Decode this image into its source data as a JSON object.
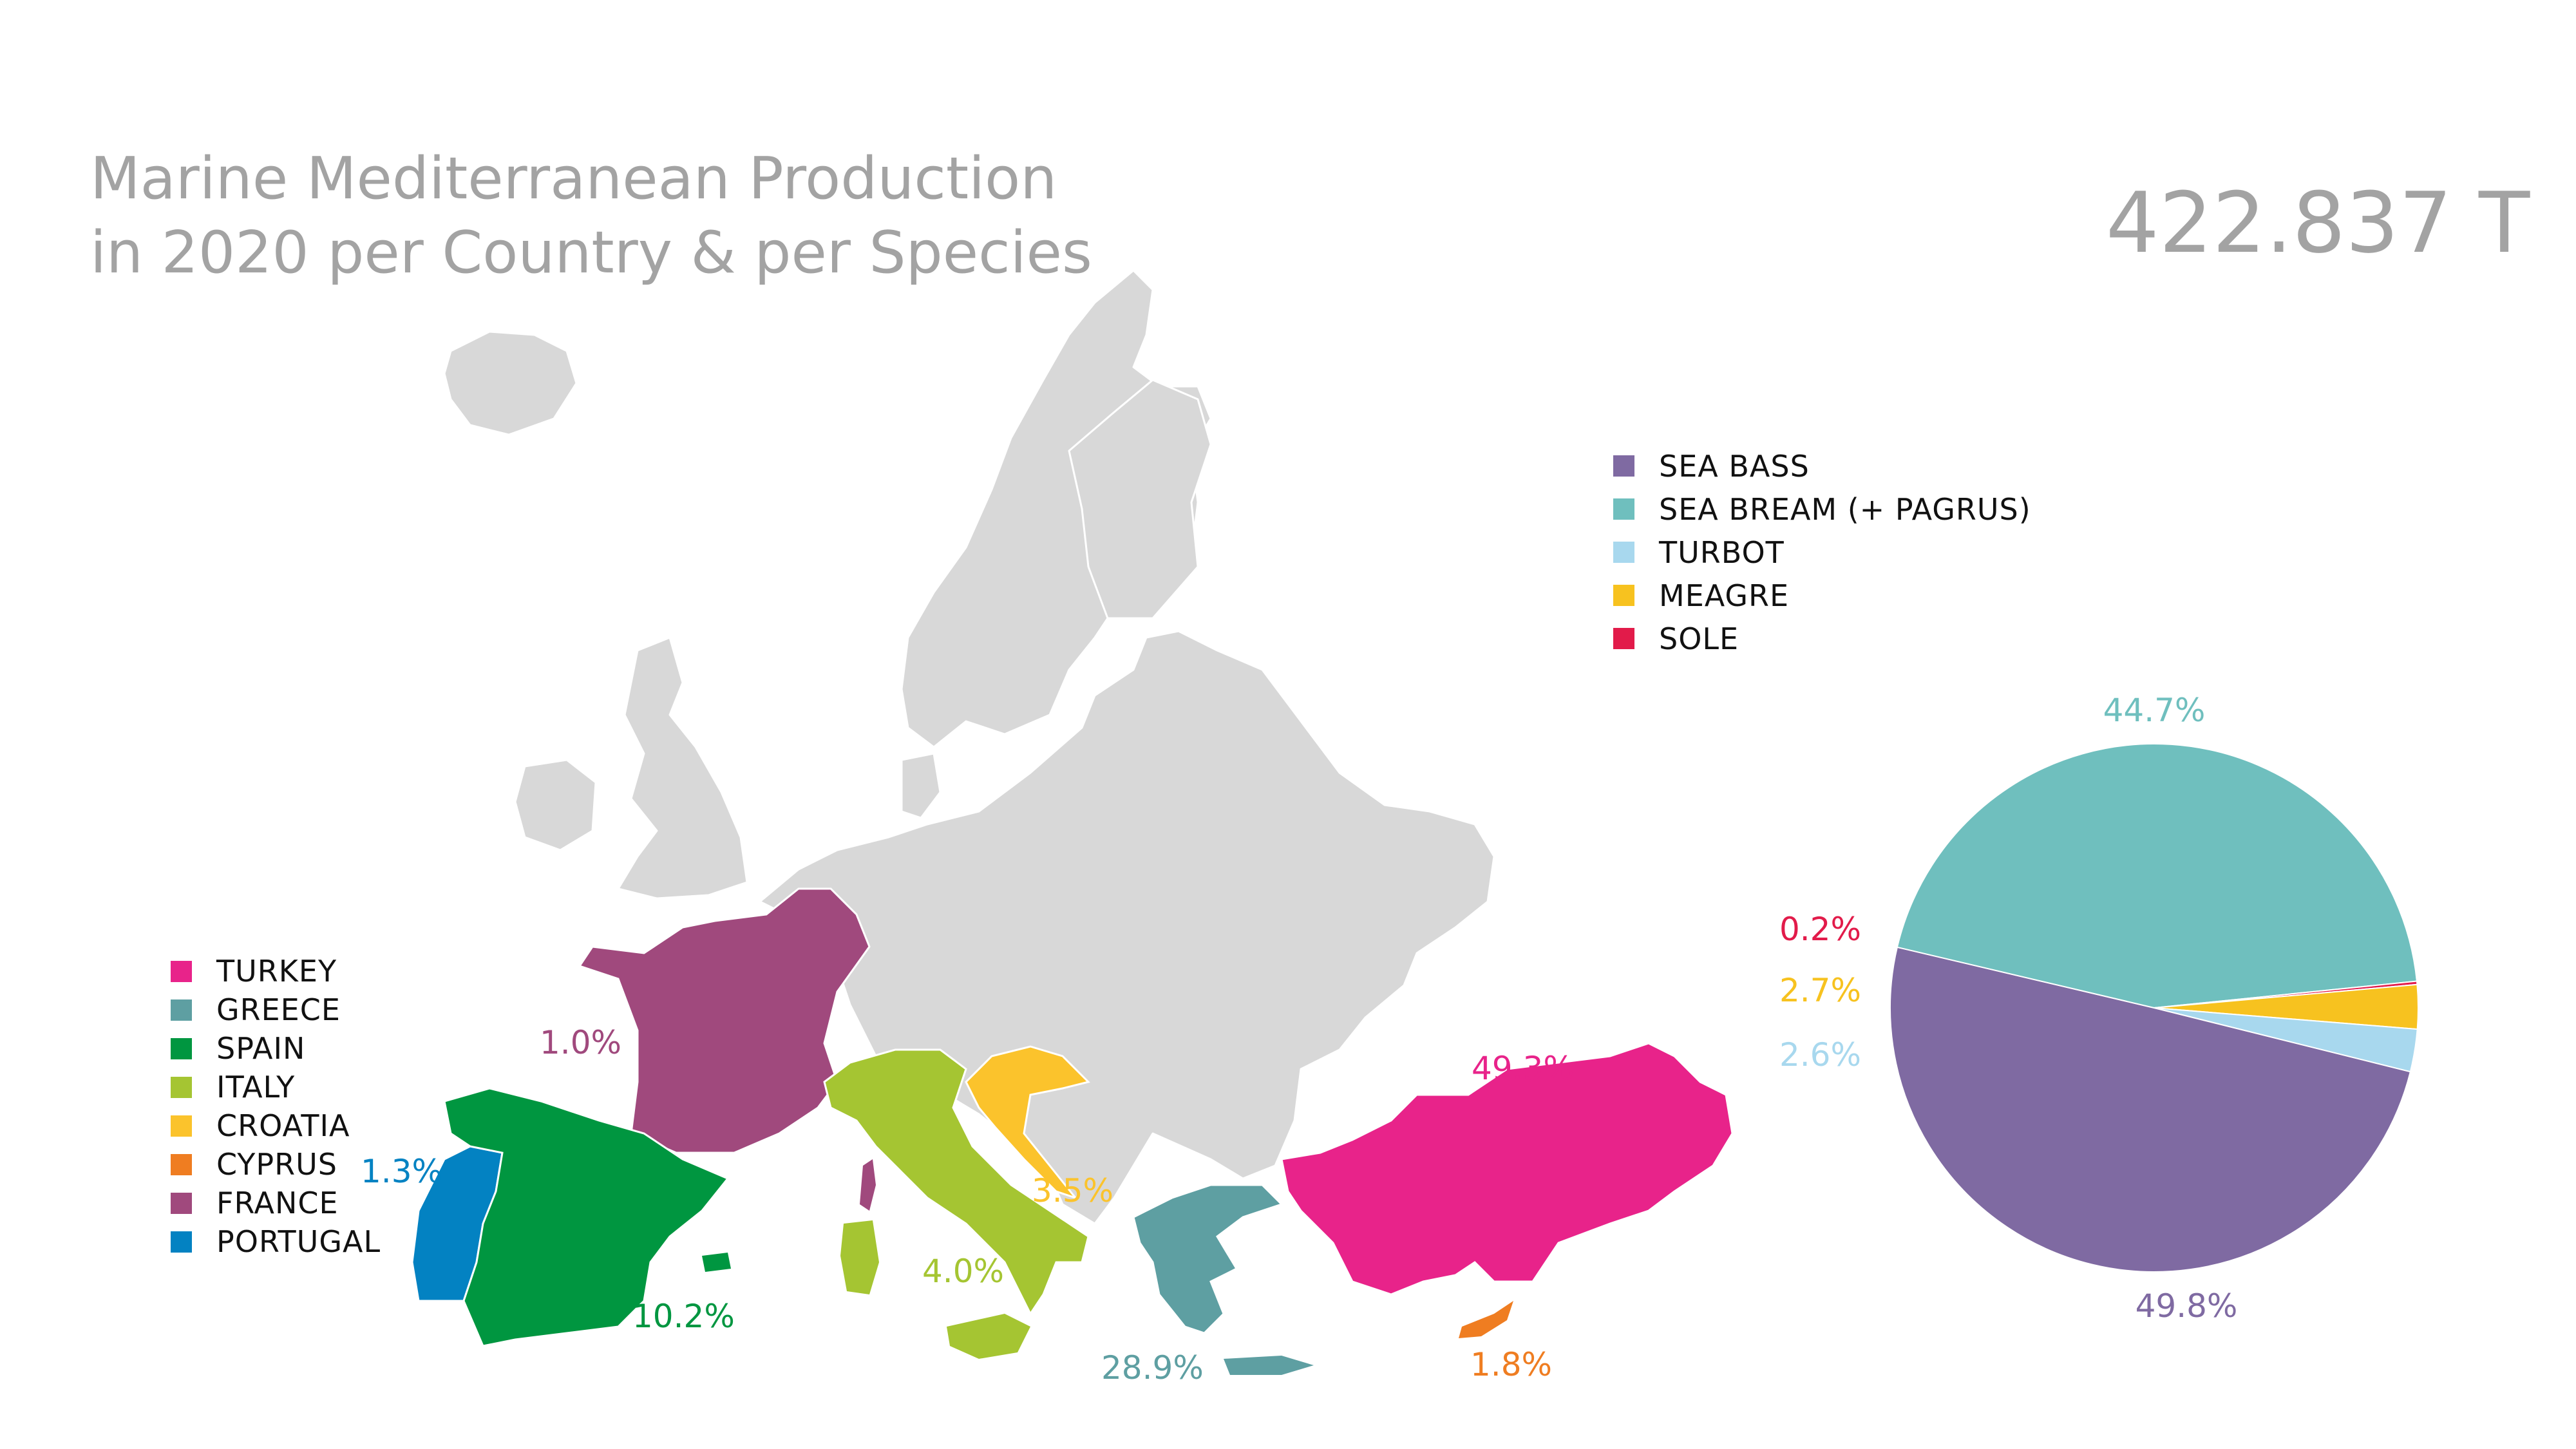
{
  "title": {
    "line1": "Marine Mediterranean Production",
    "line2": "in 2020 per Country & per Species"
  },
  "total": "422.837 T",
  "species_legend": [
    {
      "label": "SEA BASS",
      "color": "#7f6aa2"
    },
    {
      "label": "SEA BREAM (+ PAGRUS)",
      "color": "#6fbfbe"
    },
    {
      "label": "TURBOT",
      "color": "#a8d8ee"
    },
    {
      "label": "MEAGRE",
      "color": "#f7c21f"
    },
    {
      "label": "SOLE",
      "color": "#e21b4a"
    }
  ],
  "country_legend": [
    {
      "label": "TURKEY",
      "color": "#e8238a"
    },
    {
      "label": "GREECE",
      "color": "#5e9fa2"
    },
    {
      "label": "SPAIN",
      "color": "#009640"
    },
    {
      "label": "ITALY",
      "color": "#a5c532"
    },
    {
      "label": "CROATIA",
      "color": "#fbc32c"
    },
    {
      "label": "CYPRUS",
      "color": "#ef7d21"
    },
    {
      "label": "FRANCE",
      "color": "#a0497d"
    },
    {
      "label": "PORTUGAL",
      "color": "#0382c2"
    }
  ],
  "country_percentages": {
    "turkey": "49.3%",
    "greece": "28.9%",
    "spain": "10.2%",
    "italy": "4.0%",
    "croatia": "3.5%",
    "cyprus": "1.8%",
    "portugal": "1.3%",
    "france": "1.0%"
  },
  "chart_data": {
    "type": "pie",
    "categories": [
      "SEA BASS",
      "SEA BREAM (+ PAGRUS)",
      "TURBOT",
      "MEAGRE",
      "SOLE"
    ],
    "values": [
      49.8,
      44.7,
      2.6,
      2.7,
      0.2
    ],
    "labels": [
      "49.8%",
      "44.7%",
      "2.6%",
      "2.7%",
      "0.2%"
    ],
    "colors": [
      "#7f6aa2",
      "#6fbfbe",
      "#a8d8ee",
      "#f7c21f",
      "#e21b4a"
    ]
  }
}
